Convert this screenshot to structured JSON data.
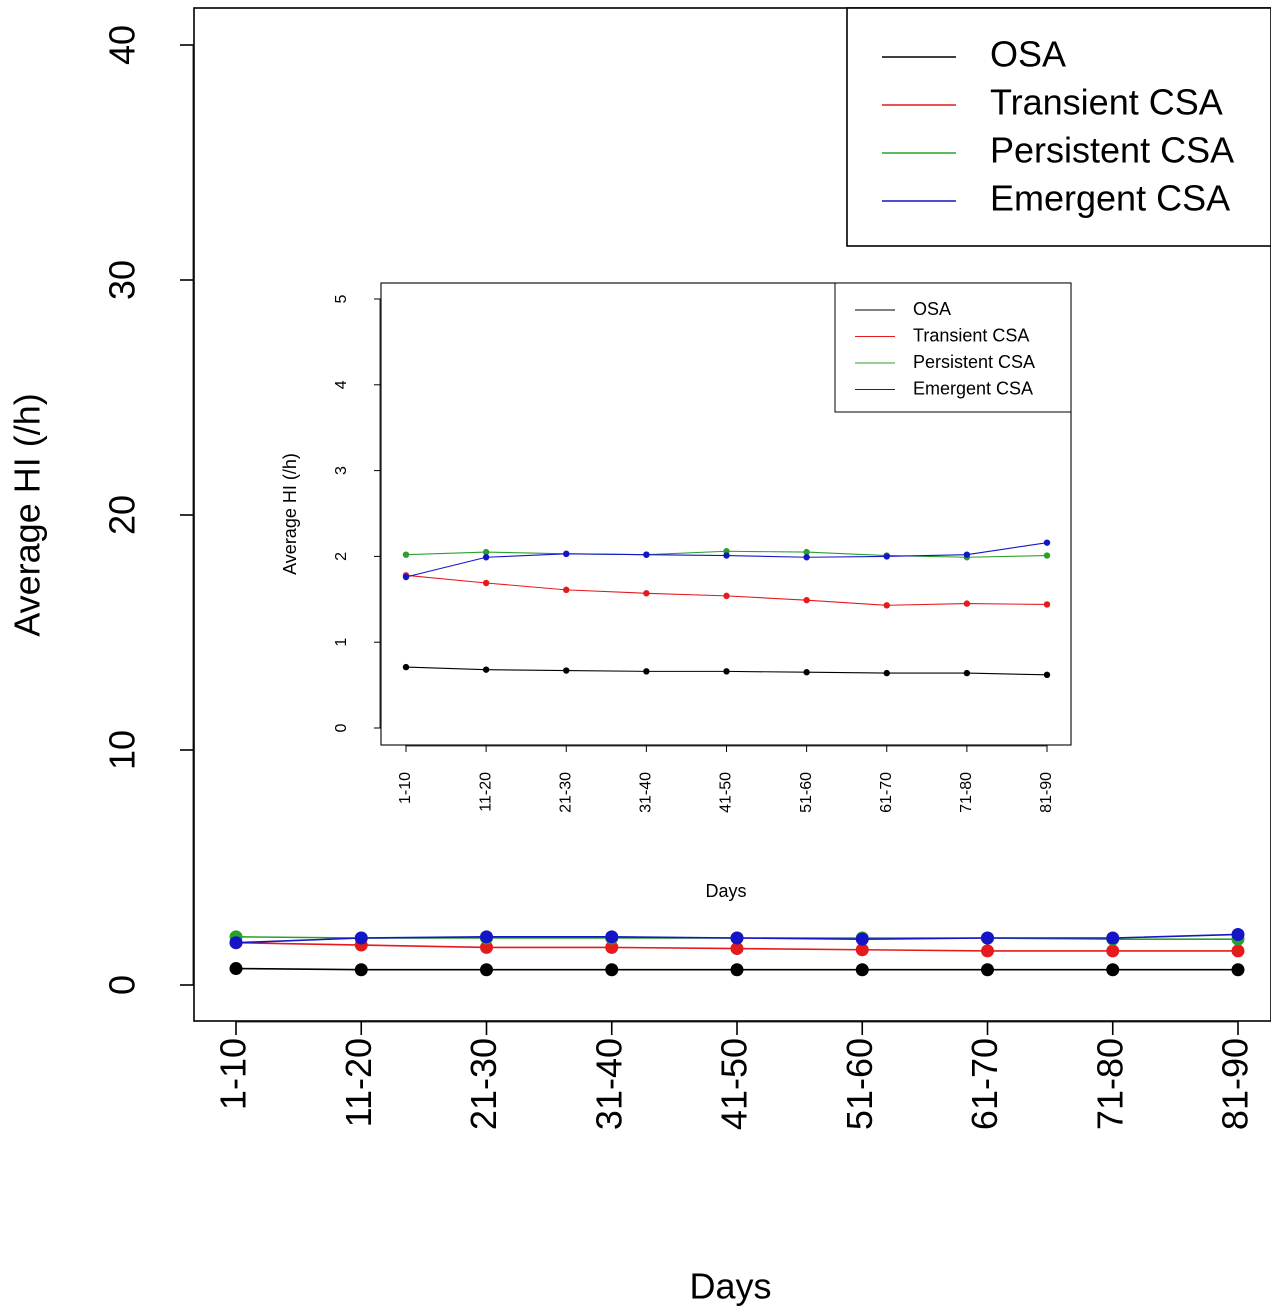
{
  "chart_data": [
    {
      "type": "line",
      "xlabel": "Days",
      "ylabel": "Average HI (/h)",
      "categories": [
        "1-10",
        "11-20",
        "21-30",
        "31-40",
        "41-50",
        "51-60",
        "61-70",
        "71-80",
        "81-90"
      ],
      "ylim": [
        0,
        40
      ],
      "yticks": [
        0,
        10,
        20,
        30,
        40
      ],
      "grid": false,
      "legend": "top-right",
      "series": [
        {
          "name": "OSA",
          "color": "#000000",
          "values": [
            0.7,
            0.65,
            0.65,
            0.65,
            0.65,
            0.65,
            0.65,
            0.65,
            0.65
          ]
        },
        {
          "name": "Transient CSA",
          "color": "#e41a1c",
          "values": [
            1.8,
            1.7,
            1.6,
            1.6,
            1.55,
            1.5,
            1.45,
            1.45,
            1.45
          ]
        },
        {
          "name": "Persistent CSA",
          "color": "#2ca02c",
          "values": [
            2.05,
            2.0,
            2.0,
            2.0,
            2.0,
            2.0,
            2.0,
            1.95,
            1.95
          ]
        },
        {
          "name": "Emergent CSA",
          "color": "#1515c8",
          "values": [
            1.8,
            2.0,
            2.05,
            2.05,
            2.0,
            1.95,
            2.0,
            2.0,
            2.15
          ]
        }
      ]
    },
    {
      "type": "line",
      "xlabel": "Days",
      "ylabel": "Average HI (/h)",
      "categories": [
        "1-10",
        "11-20",
        "21-30",
        "31-40",
        "41-50",
        "51-60",
        "61-70",
        "71-80",
        "81-90"
      ],
      "ylim": [
        0,
        5
      ],
      "yticks": [
        0,
        1,
        2,
        3,
        4,
        5
      ],
      "grid": false,
      "legend": "top-right",
      "series": [
        {
          "name": "OSA",
          "color": "#000000",
          "values": [
            0.71,
            0.68,
            0.67,
            0.66,
            0.66,
            0.65,
            0.64,
            0.64,
            0.62
          ]
        },
        {
          "name": "Transient CSA",
          "color": "#e41a1c",
          "values": [
            1.78,
            1.69,
            1.61,
            1.57,
            1.54,
            1.49,
            1.43,
            1.45,
            1.44
          ]
        },
        {
          "name": "Persistent CSA",
          "color": "#2ca02c",
          "values": [
            2.02,
            2.05,
            2.03,
            2.02,
            2.06,
            2.05,
            2.01,
            1.99,
            2.01
          ]
        },
        {
          "name": "Emergent CSA",
          "color": "#1515c8",
          "values": [
            1.76,
            1.99,
            2.03,
            2.02,
            2.01,
            1.99,
            2.0,
            2.02,
            2.16
          ]
        }
      ]
    }
  ]
}
